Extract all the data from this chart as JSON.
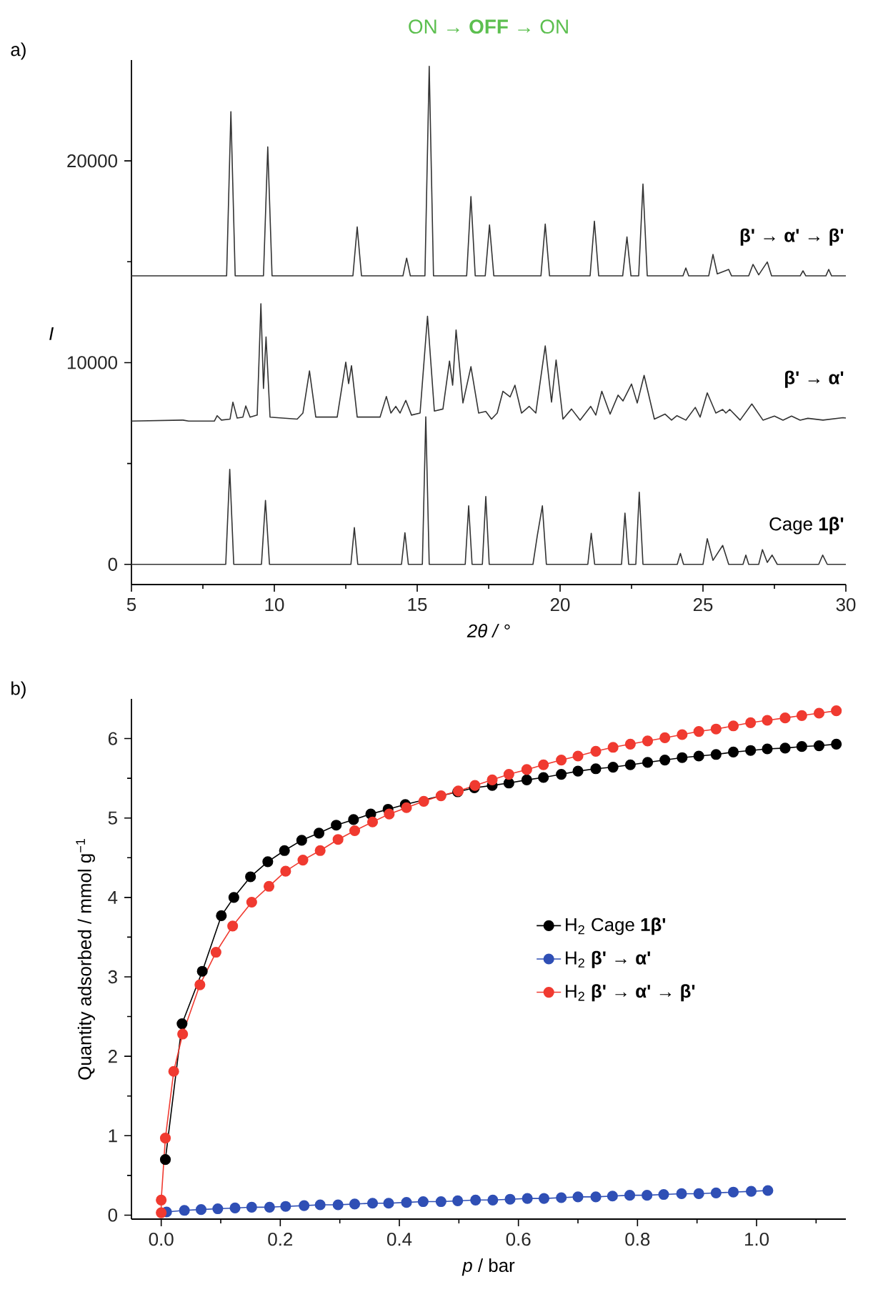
{
  "chart_data": [
    {
      "type": "line",
      "title": "ON → **OFF** → ON",
      "xlabel": "2θ / °",
      "ylabel": "I",
      "annotations": [
        "a)"
      ],
      "xlim": [
        5,
        30
      ],
      "ylim": [
        -1000,
        25000
      ],
      "xticks": [
        5,
        {
          "value": 7.5,
          "label": null
        },
        10,
        {
          "value": 12.5,
          "label": null
        },
        15,
        {
          "value": 17.5,
          "label": null
        },
        20,
        {
          "value": 22.5,
          "label": null
        },
        25,
        {
          "value": 27.5,
          "label": null
        },
        30
      ],
      "yticks": [
        0,
        {
          "value": 5000,
          "label": null
        },
        10000,
        {
          "value": 15000,
          "label": null
        },
        20000
      ],
      "series": [
        {
          "name": "Cage **1β'**",
          "color": "#333333",
          "x": [
            5,
            8.3,
            8.44,
            8.58,
            9.55,
            9.69,
            9.83,
            12.68,
            12.8,
            12.92,
            14.45,
            14.57,
            14.69,
            15.18,
            15.3,
            15.42,
            16.68,
            16.8,
            16.92,
            17.28,
            17.4,
            17.52,
            19.05,
            19.2,
            19.38,
            19.52,
            20.97,
            21.09,
            21.21,
            22.15,
            22.27,
            22.4,
            22.65,
            22.77,
            22.9,
            24.1,
            24.21,
            24.32,
            25.0,
            25.15,
            25.35,
            25.69,
            25.9,
            26.4,
            26.5,
            26.6,
            26.95,
            27.08,
            27.25,
            27.42,
            27.6,
            29.05,
            29.19,
            29.35,
            30
          ],
          "values": [
            0,
            0,
            4710,
            0,
            0,
            3170,
            0,
            0,
            1820,
            0,
            0,
            1570,
            0,
            0,
            7310,
            0,
            0,
            2900,
            0,
            0,
            3360,
            0,
            0,
            1400,
            2900,
            0,
            0,
            1540,
            0,
            0,
            2540,
            0,
            0,
            3580,
            0,
            0,
            540,
            0,
            0,
            1270,
            200,
            940,
            0,
            0,
            460,
            0,
            0,
            730,
            100,
            460,
            0,
            0,
            460,
            0,
            0
          ]
        },
        {
          "name": "**β'** → **α'**",
          "color": "#333333",
          "x": [
            5,
            6.8,
            7,
            7.9,
            8.0,
            8.15,
            8.45,
            8.55,
            8.7,
            8.9,
            9.0,
            9.15,
            9.4,
            9.53,
            9.62,
            9.71,
            9.85,
            10.8,
            11.0,
            11.23,
            11.45,
            12.2,
            12.5,
            12.6,
            12.7,
            12.9,
            13.7,
            13.92,
            14.08,
            14.25,
            14.4,
            14.6,
            14.8,
            15.1,
            15.36,
            15.6,
            15.9,
            16.13,
            16.24,
            16.36,
            16.6,
            16.88,
            17.15,
            17.4,
            17.6,
            17.8,
            18.0,
            18.25,
            18.42,
            18.65,
            18.92,
            19.15,
            19.48,
            19.7,
            19.86,
            20.1,
            20.4,
            20.7,
            21.07,
            21.25,
            21.46,
            21.75,
            22.03,
            22.2,
            22.5,
            22.7,
            22.94,
            23.3,
            23.67,
            23.9,
            24.09,
            24.4,
            24.73,
            24.9,
            25.15,
            25.45,
            25.69,
            25.8,
            25.94,
            26.3,
            26.71,
            27.1,
            27.5,
            27.8,
            28.1,
            28.4,
            28.67,
            29.2,
            29.9,
            30
          ],
          "values": [
            7100,
            7150,
            7100,
            7100,
            7370,
            7150,
            7200,
            8040,
            7250,
            7300,
            7850,
            7300,
            7400,
            12920,
            8720,
            11270,
            7300,
            7200,
            7500,
            9590,
            7300,
            7300,
            10020,
            8960,
            9850,
            7300,
            7300,
            8320,
            7500,
            7830,
            7500,
            8130,
            7400,
            7500,
            12300,
            7600,
            7700,
            10080,
            8880,
            11620,
            8000,
            9800,
            7500,
            7580,
            7200,
            7500,
            8580,
            8300,
            8880,
            7500,
            7830,
            7500,
            10830,
            8040,
            10130,
            7200,
            7700,
            7150,
            7830,
            7400,
            8580,
            7450,
            8390,
            8100,
            8940,
            8000,
            9370,
            7200,
            7450,
            7150,
            7370,
            7150,
            7780,
            7300,
            8500,
            7500,
            7680,
            7500,
            7680,
            7150,
            7950,
            7150,
            7350,
            7150,
            7350,
            7150,
            7240,
            7150,
            7270,
            7250
          ]
        },
        {
          "name": "**β'** → **α'** → **β'**",
          "color": "#333333",
          "x": [
            5,
            8.33,
            8.48,
            8.63,
            9.62,
            9.77,
            9.92,
            12.75,
            12.9,
            13.05,
            14.5,
            14.63,
            14.76,
            15.27,
            15.42,
            15.57,
            16.73,
            16.88,
            17.03,
            17.38,
            17.53,
            17.68,
            19.33,
            19.48,
            19.63,
            21.05,
            21.2,
            21.35,
            22.19,
            22.34,
            22.48,
            22.75,
            22.9,
            23.05,
            24.3,
            24.4,
            24.5,
            25.2,
            25.35,
            25.5,
            25.9,
            26.0,
            26.6,
            26.75,
            26.95,
            27.25,
            27.4,
            28.4,
            28.5,
            28.6,
            29.3,
            29.4,
            29.5,
            30
          ],
          "values": [
            14300,
            14300,
            22440,
            14300,
            14300,
            20690,
            14300,
            14300,
            16730,
            14300,
            14300,
            15180,
            14300,
            14300,
            24690,
            14300,
            14300,
            18230,
            14300,
            14300,
            16820,
            14300,
            14300,
            16870,
            14300,
            14300,
            17010,
            14300,
            14300,
            16230,
            14300,
            14300,
            18850,
            14300,
            14300,
            14690,
            14300,
            14300,
            15360,
            14400,
            14620,
            14300,
            14300,
            14870,
            14350,
            14990,
            14300,
            14300,
            14550,
            14300,
            14300,
            14620,
            14300,
            14300
          ]
        }
      ]
    },
    {
      "type": "line",
      "xlabel": "*p* / bar",
      "ylabel": "Quantity adsorbed / mmol g$^{−1}$",
      "annotations": [
        "b)"
      ],
      "marker": "circle",
      "legend": "right",
      "xlim": [
        -0.05,
        1.15
      ],
      "ylim": [
        -0.05,
        6.5
      ],
      "xticks": [
        {
          "value": 0,
          "label": "0.0"
        },
        {
          "value": 0.1,
          "label": null
        },
        {
          "value": 0.2,
          "label": "0.2"
        },
        {
          "value": 0.3,
          "label": null
        },
        {
          "value": 0.4,
          "label": "0.4"
        },
        {
          "value": 0.5,
          "label": null
        },
        {
          "value": 0.6,
          "label": "0.6"
        },
        {
          "value": 0.7,
          "label": null
        },
        {
          "value": 0.8,
          "label": "0.8"
        },
        {
          "value": 0.9,
          "label": null
        },
        {
          "value": 1.0,
          "label": "1.0"
        },
        {
          "value": 1.1,
          "label": null
        }
      ],
      "yticks": [
        0,
        {
          "value": 0.5,
          "label": null
        },
        1,
        {
          "value": 1.5,
          "label": null
        },
        2,
        {
          "value": 2.5,
          "label": null
        },
        3,
        {
          "value": 3.5,
          "label": null
        },
        4,
        {
          "value": 4.5,
          "label": null
        },
        5,
        {
          "value": 5.5,
          "label": null
        },
        6
      ],
      "series": [
        {
          "name": "H$_{2}$ Cage **1β'**",
          "color": "#000000",
          "x": [
            0.007,
            0.035,
            0.069,
            0.101,
            0.122,
            0.15,
            0.179,
            0.207,
            0.236,
            0.265,
            0.294,
            0.323,
            0.352,
            0.381,
            0.41,
            0.439,
            0.47,
            0.498,
            0.526,
            0.556,
            0.584,
            0.614,
            0.642,
            0.672,
            0.7,
            0.73,
            0.759,
            0.788,
            0.817,
            0.846,
            0.875,
            0.903,
            0.932,
            0.961,
            0.99,
            1.018,
            1.048,
            1.076,
            1.105,
            1.134
          ],
          "values": [
            0.7,
            2.41,
            3.07,
            3.77,
            4.0,
            4.26,
            4.45,
            4.59,
            4.72,
            4.81,
            4.91,
            4.98,
            5.05,
            5.11,
            5.17,
            null,
            null,
            5.33,
            5.38,
            5.41,
            5.44,
            5.48,
            5.51,
            5.55,
            5.59,
            5.62,
            5.64,
            5.67,
            5.7,
            5.73,
            5.76,
            5.78,
            5.8,
            5.83,
            5.85,
            5.87,
            5.88,
            5.9,
            5.91,
            5.93
          ]
        },
        {
          "name": "H$_{2}$ **β'** → **α'**",
          "color": "#2f4fb5",
          "x": [
            0.009,
            0.039,
            0.067,
            0.095,
            0.124,
            0.152,
            0.182,
            0.209,
            0.24,
            0.267,
            0.297,
            0.325,
            0.355,
            0.382,
            0.412,
            0.44,
            0.47,
            0.498,
            0.528,
            0.557,
            0.586,
            0.615,
            0.643,
            0.672,
            0.7,
            0.73,
            0.758,
            0.787,
            0.816,
            0.844,
            0.874,
            0.903,
            0.932,
            0.961,
            0.991,
            1.019
          ],
          "values": [
            0.04,
            0.06,
            0.07,
            0.08,
            0.09,
            0.1,
            0.1,
            0.11,
            0.12,
            0.13,
            0.13,
            0.14,
            0.15,
            0.15,
            0.16,
            0.17,
            0.17,
            0.18,
            0.19,
            0.19,
            0.2,
            0.21,
            0.21,
            0.22,
            0.23,
            0.23,
            0.24,
            0.25,
            0.25,
            0.26,
            0.27,
            0.27,
            0.28,
            0.29,
            0.3,
            0.31
          ]
        },
        {
          "name": "H$_{2}$ **β'** → **α'** → **β'**",
          "color": "#f03a30",
          "x": [
            0.0,
            0.0,
            0.007,
            0.021,
            0.036,
            0.065,
            0.092,
            0.12,
            0.152,
            0.181,
            0.209,
            0.238,
            0.267,
            0.297,
            0.325,
            0.355,
            0.383,
            0.412,
            0.441,
            0.47,
            0.499,
            0.527,
            0.556,
            0.584,
            0.614,
            0.642,
            0.672,
            0.7,
            0.73,
            0.759,
            0.788,
            0.817,
            0.846,
            0.875,
            0.903,
            0.932,
            0.961,
            0.99,
            1.018,
            1.048,
            1.076,
            1.105,
            1.134
          ],
          "values": [
            0.03,
            0.19,
            0.97,
            1.81,
            2.28,
            2.9,
            3.31,
            3.64,
            3.94,
            4.14,
            4.33,
            4.47,
            4.59,
            4.73,
            4.84,
            4.95,
            5.05,
            5.13,
            5.21,
            5.28,
            5.34,
            5.41,
            5.48,
            5.55,
            5.61,
            5.67,
            5.73,
            5.78,
            5.84,
            5.89,
            5.93,
            5.97,
            6.01,
            6.05,
            6.09,
            6.12,
            6.16,
            6.2,
            6.23,
            6.26,
            6.29,
            6.32,
            6.35
          ]
        }
      ]
    }
  ]
}
